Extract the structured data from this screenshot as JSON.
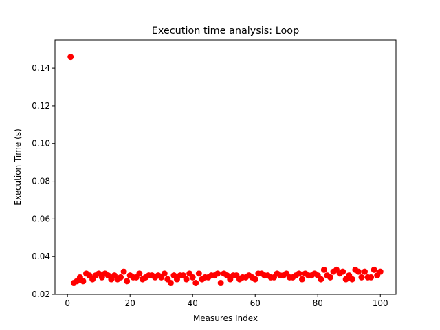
{
  "chart_data": {
    "type": "scatter",
    "title": "Execution time analysis: Loop",
    "xlabel": "Measures Index",
    "ylabel": "Execution Time (s)",
    "xlim": [
      -4,
      105
    ],
    "ylim": [
      0.02,
      0.155
    ],
    "xticks": [
      0,
      20,
      40,
      60,
      80,
      100
    ],
    "yticks": [
      0.02,
      0.04,
      0.06,
      0.08,
      0.1,
      0.12,
      0.14
    ],
    "ytick_labels": [
      "0.02",
      "0.04",
      "0.06",
      "0.08",
      "0.10",
      "0.12",
      "0.14"
    ],
    "grid": false,
    "legend": "none",
    "marker_color": "#ff0000",
    "x": [
      1,
      2,
      3,
      4,
      5,
      6,
      7,
      8,
      9,
      10,
      11,
      12,
      13,
      14,
      15,
      16,
      17,
      18,
      19,
      20,
      21,
      22,
      23,
      24,
      25,
      26,
      27,
      28,
      29,
      30,
      31,
      32,
      33,
      34,
      35,
      36,
      37,
      38,
      39,
      40,
      41,
      42,
      43,
      44,
      45,
      46,
      47,
      48,
      49,
      50,
      51,
      52,
      53,
      54,
      55,
      56,
      57,
      58,
      59,
      60,
      61,
      62,
      63,
      64,
      65,
      66,
      67,
      68,
      69,
      70,
      71,
      72,
      73,
      74,
      75,
      76,
      77,
      78,
      79,
      80,
      81,
      82,
      83,
      84,
      85,
      86,
      87,
      88,
      89,
      90,
      91,
      92,
      93,
      94,
      95,
      96,
      97,
      98,
      99,
      100
    ],
    "y": [
      0.146,
      0.026,
      0.027,
      0.029,
      0.027,
      0.031,
      0.03,
      0.028,
      0.03,
      0.031,
      0.029,
      0.031,
      0.03,
      0.028,
      0.03,
      0.028,
      0.029,
      0.032,
      0.027,
      0.03,
      0.029,
      0.029,
      0.031,
      0.028,
      0.029,
      0.03,
      0.03,
      0.029,
      0.03,
      0.029,
      0.031,
      0.028,
      0.026,
      0.03,
      0.028,
      0.03,
      0.03,
      0.028,
      0.031,
      0.029,
      0.026,
      0.031,
      0.028,
      0.029,
      0.029,
      0.03,
      0.03,
      0.031,
      0.026,
      0.031,
      0.03,
      0.028,
      0.03,
      0.03,
      0.028,
      0.029,
      0.029,
      0.03,
      0.029,
      0.028,
      0.031,
      0.031,
      0.03,
      0.03,
      0.029,
      0.029,
      0.031,
      0.03,
      0.03,
      0.031,
      0.029,
      0.029,
      0.03,
      0.031,
      0.028,
      0.031,
      0.03,
      0.03,
      0.031,
      0.03,
      0.028,
      0.033,
      0.03,
      0.029,
      0.032,
      0.033,
      0.031,
      0.032,
      0.028,
      0.03,
      0.028,
      0.033,
      0.032,
      0.029,
      0.032,
      0.029,
      0.029,
      0.033,
      0.03,
      0.032
    ]
  }
}
